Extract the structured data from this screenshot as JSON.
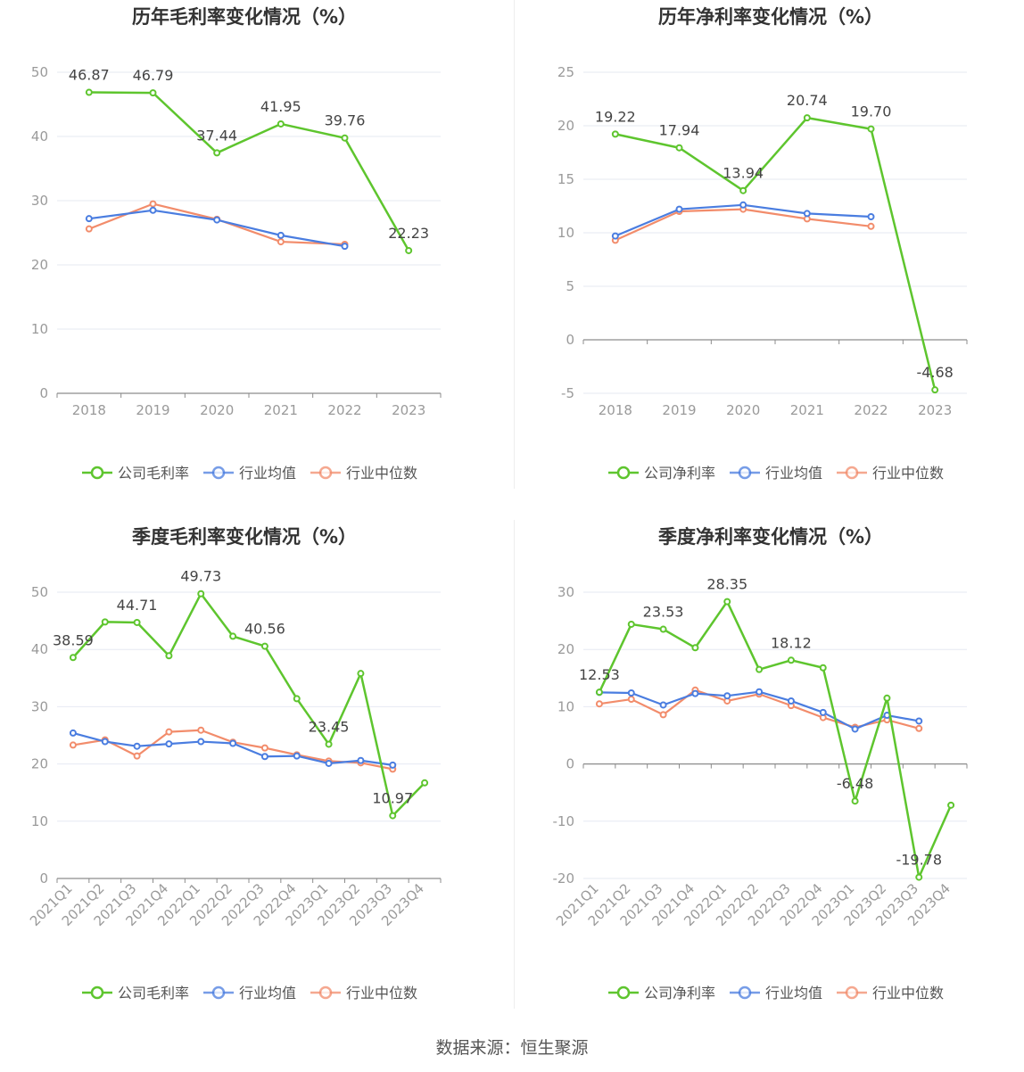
{
  "footer": {
    "source": "数据来源：恒生聚源"
  },
  "colors": {
    "company": "#5ec52e",
    "avg": "#4a7de0",
    "median": "#f28c6b",
    "grid": "#e6e9f2",
    "axis": "#8c8c8c",
    "tick": "#9a9a9a"
  },
  "legend_labels": [
    "公司毛利率",
    "行业均值",
    "行业中位数"
  ],
  "chart_data": [
    {
      "type": "line",
      "title": "历年毛利率变化情况（%）",
      "categories": [
        "2018",
        "2019",
        "2020",
        "2021",
        "2022",
        "2023"
      ],
      "ylim": [
        0,
        50
      ],
      "yticks": [
        0,
        10,
        20,
        30,
        40,
        50
      ],
      "legend_position": "bottom",
      "grid": true,
      "series": [
        {
          "name": "公司毛利率",
          "values": [
            46.87,
            46.79,
            37.44,
            41.95,
            39.76,
            22.23
          ]
        },
        {
          "name": "行业均值",
          "values": [
            27.2,
            28.5,
            27.0,
            24.6,
            22.9,
            null
          ]
        },
        {
          "name": "行业中位数",
          "values": [
            25.6,
            29.5,
            27.1,
            23.6,
            23.2,
            null
          ]
        }
      ],
      "labels": [
        {
          "index": 0,
          "text": "46.87"
        },
        {
          "index": 1,
          "text": "46.79"
        },
        {
          "index": 2,
          "text": "37.44"
        },
        {
          "index": 3,
          "text": "41.95"
        },
        {
          "index": 4,
          "text": "39.76"
        },
        {
          "index": 5,
          "text": "22.23"
        }
      ]
    },
    {
      "type": "line",
      "title": "历年净利率变化情况（%）",
      "categories": [
        "2018",
        "2019",
        "2020",
        "2021",
        "2022",
        "2023"
      ],
      "ylim": [
        -5,
        25
      ],
      "yticks": [
        -5,
        0,
        5,
        10,
        15,
        20,
        25
      ],
      "legend_position": "bottom",
      "grid": true,
      "series": [
        {
          "name": "公司净利率",
          "values": [
            19.22,
            17.94,
            13.94,
            20.74,
            19.7,
            -4.68
          ]
        },
        {
          "name": "行业均值",
          "values": [
            9.7,
            12.2,
            12.6,
            11.8,
            11.5,
            null
          ]
        },
        {
          "name": "行业中位数",
          "values": [
            9.3,
            12.0,
            12.2,
            11.3,
            10.6,
            null
          ]
        }
      ],
      "labels": [
        {
          "index": 0,
          "text": "19.22"
        },
        {
          "index": 1,
          "text": "17.94"
        },
        {
          "index": 2,
          "text": "13.94"
        },
        {
          "index": 3,
          "text": "20.74"
        },
        {
          "index": 4,
          "text": "19.70"
        },
        {
          "index": 5,
          "text": "-4.68"
        }
      ]
    },
    {
      "type": "line",
      "title": "季度毛利率变化情况（%）",
      "categories": [
        "2021Q1",
        "2021Q2",
        "2021Q3",
        "2021Q4",
        "2022Q1",
        "2022Q2",
        "2022Q3",
        "2022Q4",
        "2023Q1",
        "2023Q2",
        "2023Q3",
        "2023Q4"
      ],
      "ylim": [
        0,
        50
      ],
      "yticks": [
        0,
        10,
        20,
        30,
        40,
        50
      ],
      "legend_position": "bottom",
      "grid": true,
      "series": [
        {
          "name": "公司毛利率",
          "values": [
            38.59,
            44.8,
            44.71,
            38.9,
            49.73,
            42.3,
            40.56,
            31.4,
            23.45,
            35.8,
            10.97,
            16.7
          ]
        },
        {
          "name": "行业均值",
          "values": [
            25.4,
            23.9,
            23.1,
            23.5,
            23.9,
            23.6,
            21.3,
            21.4,
            20.1,
            20.6,
            19.8,
            null
          ]
        },
        {
          "name": "行业中位数",
          "values": [
            23.3,
            24.2,
            21.4,
            25.6,
            25.9,
            23.8,
            22.8,
            21.6,
            20.5,
            20.2,
            19.1,
            null
          ]
        }
      ],
      "labels": [
        {
          "index": 0,
          "text": "38.59"
        },
        {
          "index": 2,
          "text": "44.71"
        },
        {
          "index": 4,
          "text": "49.73"
        },
        {
          "index": 6,
          "text": "40.56"
        },
        {
          "index": 8,
          "text": "23.45"
        },
        {
          "index": 10,
          "text": "10.97"
        }
      ]
    },
    {
      "type": "line",
      "title": "季度净利率变化情况（%）",
      "categories": [
        "2021Q1",
        "2021Q2",
        "2021Q3",
        "2021Q4",
        "2022Q1",
        "2022Q2",
        "2022Q3",
        "2022Q4",
        "2023Q1",
        "2023Q2",
        "2023Q3",
        "2023Q4"
      ],
      "ylim": [
        -20,
        30
      ],
      "yticks": [
        -20,
        -10,
        0,
        10,
        20,
        30
      ],
      "legend_position": "bottom",
      "grid": true,
      "series": [
        {
          "name": "公司净利率",
          "values": [
            12.53,
            24.4,
            23.53,
            20.3,
            28.35,
            16.5,
            18.12,
            16.8,
            -6.48,
            11.5,
            -19.78,
            -7.2
          ]
        },
        {
          "name": "行业均值",
          "values": [
            12.5,
            12.4,
            10.3,
            12.3,
            11.9,
            12.6,
            11.0,
            9.0,
            6.1,
            8.5,
            7.5,
            null
          ]
        },
        {
          "name": "行业中位数",
          "values": [
            10.5,
            11.3,
            8.6,
            12.9,
            11.0,
            12.2,
            10.2,
            8.1,
            6.4,
            7.7,
            6.2,
            null
          ]
        }
      ],
      "labels": [
        {
          "index": 0,
          "text": "12.53"
        },
        {
          "index": 2,
          "text": "23.53"
        },
        {
          "index": 4,
          "text": "28.35"
        },
        {
          "index": 6,
          "text": "18.12"
        },
        {
          "index": 8,
          "text": "-6.48"
        },
        {
          "index": 10,
          "text": "-19.78"
        }
      ]
    }
  ]
}
